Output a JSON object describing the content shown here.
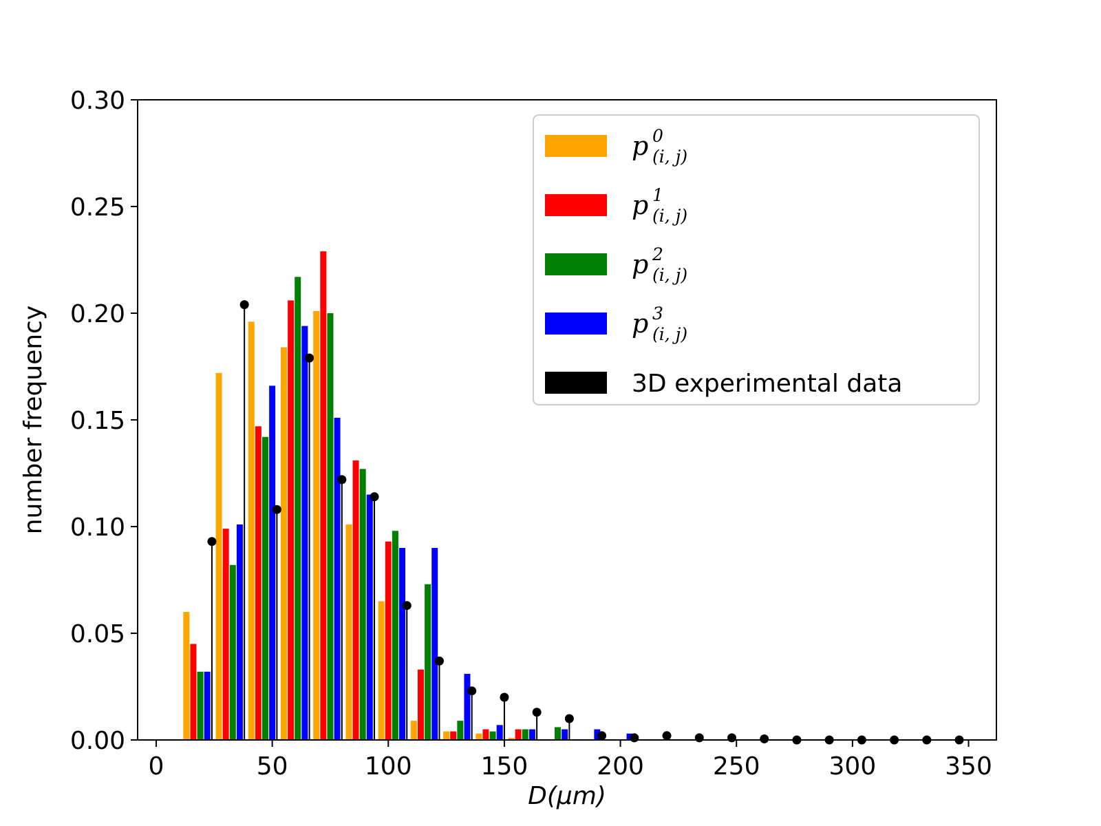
{
  "chart_data": {
    "type": "bar",
    "xlabel": "D(μm)",
    "ylabel": "number frequency",
    "xlim": [
      -8,
      362
    ],
    "ylim": [
      0,
      0.3
    ],
    "xticks": [
      0,
      50,
      100,
      150,
      200,
      250,
      300,
      350
    ],
    "yticks": [
      0.0,
      0.05,
      0.1,
      0.15,
      0.2,
      0.25,
      0.3
    ],
    "xtick_labels": [
      "0",
      "50",
      "100",
      "150",
      "200",
      "250",
      "300",
      "350"
    ],
    "ytick_labels": [
      "0.00",
      "0.05",
      "0.10",
      "0.15",
      "0.20",
      "0.25",
      "0.30"
    ],
    "grid": false,
    "legend_position": "top-right",
    "bar_series": [
      {
        "name": "p^0_(i,j)",
        "color": "#FFA500",
        "x": [
          13,
          27,
          41,
          55,
          69,
          83,
          97,
          111,
          125,
          139,
          153
        ],
        "values": [
          0.06,
          0.172,
          0.196,
          0.184,
          0.201,
          0.101,
          0.065,
          0.009,
          0.004,
          0.003,
          0.001
        ]
      },
      {
        "name": "p^1_(i,j)",
        "color": "#FF0000",
        "x": [
          16,
          30,
          44,
          58,
          72,
          86,
          100,
          114,
          128,
          142,
          156
        ],
        "values": [
          0.045,
          0.099,
          0.147,
          0.206,
          0.229,
          0.131,
          0.093,
          0.033,
          0.004,
          0.005,
          0.005
        ]
      },
      {
        "name": "p^2_(i,j)",
        "color": "#008000",
        "x": [
          19,
          33,
          47,
          61,
          75,
          89,
          103,
          117,
          131,
          145,
          159,
          173
        ],
        "values": [
          0.032,
          0.082,
          0.142,
          0.217,
          0.2,
          0.127,
          0.098,
          0.073,
          0.009,
          0.004,
          0.005,
          0.006
        ]
      },
      {
        "name": "p^3_(i,j)",
        "color": "#0000FF",
        "x": [
          22,
          36,
          50,
          64,
          78,
          92,
          106,
          120,
          134,
          148,
          162,
          176,
          190,
          204
        ],
        "values": [
          0.032,
          0.101,
          0.166,
          0.194,
          0.151,
          0.115,
          0.09,
          0.09,
          0.031,
          0.007,
          0.005,
          0.005,
          0.005,
          0.003
        ]
      }
    ],
    "stem_series": {
      "name": "3D experimental data",
      "color": "#000000",
      "x": [
        24,
        38,
        52,
        66,
        80,
        94,
        108,
        122,
        136,
        150,
        164,
        178,
        192,
        206,
        220,
        234,
        248,
        262,
        276,
        290,
        304,
        318,
        332,
        346
      ],
      "values": [
        0.093,
        0.204,
        0.108,
        0.179,
        0.122,
        0.114,
        0.063,
        0.037,
        0.023,
        0.02,
        0.013,
        0.01,
        0.002,
        0.001,
        0.002,
        0.001,
        0.001,
        0.0005,
        0.0,
        0.0,
        0.0,
        0.0,
        0.0,
        0.0
      ]
    },
    "legend": [
      {
        "base": "p",
        "sup": "0",
        "sub": "(i, j)",
        "color": "#FFA500"
      },
      {
        "base": "p",
        "sup": "1",
        "sub": "(i, j)",
        "color": "#FF0000"
      },
      {
        "base": "p",
        "sup": "2",
        "sub": "(i, j)",
        "color": "#008000"
      },
      {
        "base": "p",
        "sup": "3",
        "sub": "(i, j)",
        "color": "#0000FF"
      },
      {
        "label": "3D experimental data",
        "color": "#000000"
      }
    ]
  }
}
